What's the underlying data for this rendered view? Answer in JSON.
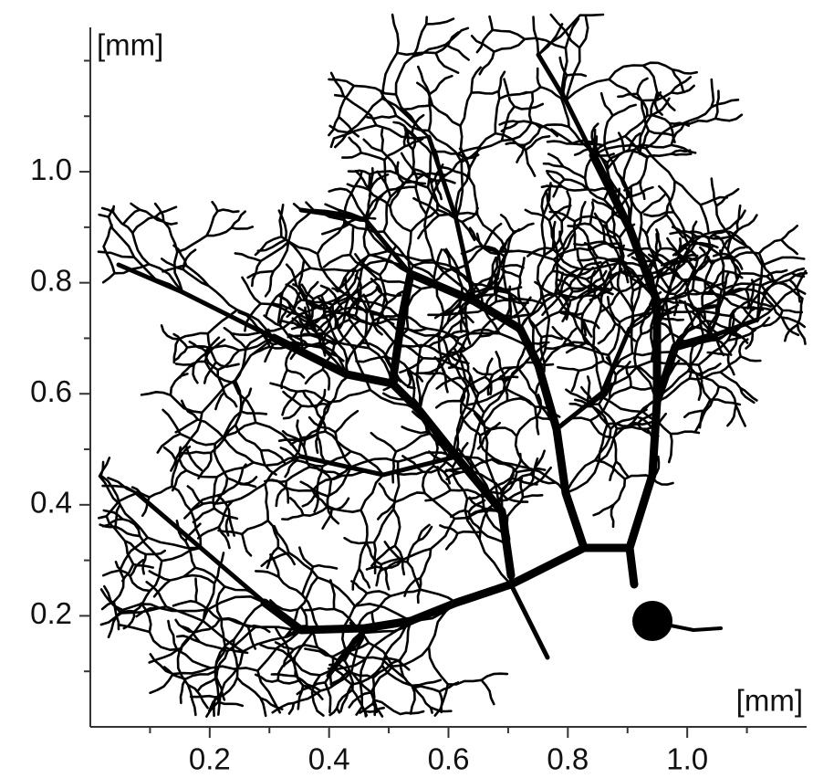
{
  "chart_data": {
    "type": "image",
    "xlabel": "[mm]",
    "ylabel": "[mm]",
    "xlim": [
      0,
      1.2
    ],
    "ylim": [
      0,
      1.26
    ],
    "xticks": [
      0.2,
      0.4,
      0.6,
      0.8,
      {
        "value": 1,
        "label": "1.0"
      }
    ],
    "yticks": [
      0.2,
      0.4,
      0.6,
      0.8,
      {
        "value": 1,
        "label": "1.0"
      }
    ],
    "xminorticks": [
      0.1,
      0.3,
      0.5,
      0.7,
      0.9,
      1.1
    ],
    "yminorticks": [
      0.1,
      0.3,
      0.5,
      0.7,
      0.9,
      1.1,
      1.2
    ],
    "color": "#000000"
  }
}
